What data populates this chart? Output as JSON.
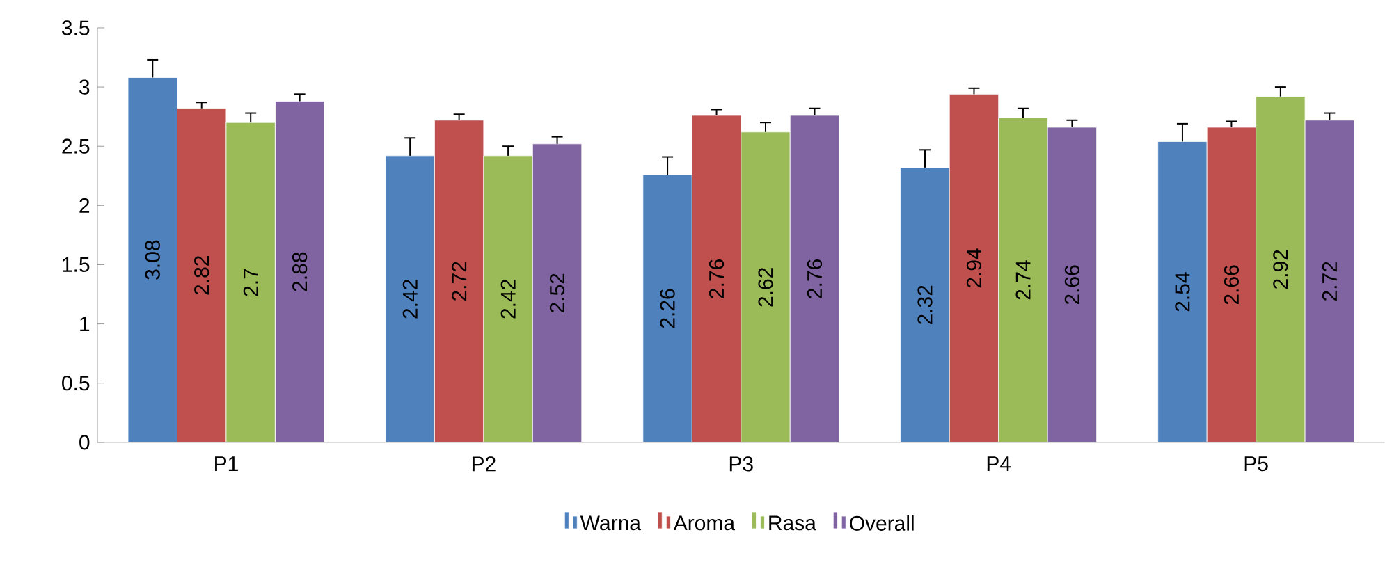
{
  "chart_data": {
    "type": "bar",
    "categories": [
      "P1",
      "P2",
      "P3",
      "P4",
      "P5"
    ],
    "series": [
      {
        "name": "Warna",
        "color": "#4f81bd",
        "values": [
          3.08,
          2.42,
          2.26,
          2.32,
          2.54
        ],
        "errors": [
          0.15,
          0.15,
          0.15,
          0.15,
          0.15
        ]
      },
      {
        "name": "Aroma",
        "color": "#c0504d",
        "values": [
          2.82,
          2.72,
          2.76,
          2.94,
          2.66
        ],
        "errors": [
          0.05,
          0.05,
          0.05,
          0.05,
          0.05
        ]
      },
      {
        "name": "Rasa",
        "color": "#9bbb59",
        "values": [
          2.7,
          2.42,
          2.62,
          2.74,
          2.92
        ],
        "errors": [
          0.08,
          0.08,
          0.08,
          0.08,
          0.08
        ]
      },
      {
        "name": "Overall",
        "color": "#8064a2",
        "values": [
          2.88,
          2.52,
          2.76,
          2.66,
          2.72
        ],
        "errors": [
          0.06,
          0.06,
          0.06,
          0.06,
          0.06
        ]
      }
    ],
    "ylim": [
      0,
      3.5
    ],
    "yticks": [
      0,
      0.5,
      1,
      1.5,
      2,
      2.5,
      3,
      3.5
    ],
    "data_labels": true,
    "legend": "bottom",
    "grid": false
  }
}
